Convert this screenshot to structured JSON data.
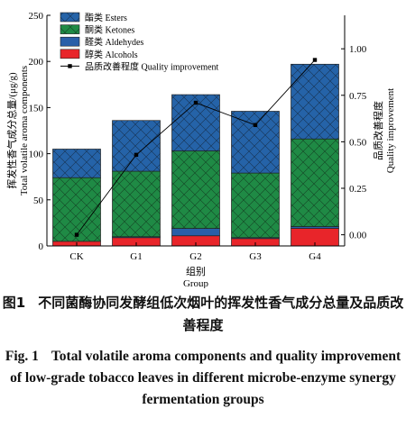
{
  "chart_data": {
    "type": "bar",
    "stacked": true,
    "categories": [
      "CK",
      "G1",
      "G2",
      "G3",
      "G4"
    ],
    "series": [
      {
        "name": "醇类  Alcohols",
        "color": "#e8252a",
        "values": [
          5,
          9,
          11,
          8,
          19
        ]
      },
      {
        "name": "醛类  Aldehydes",
        "color": "#2a5fa8",
        "values": [
          0,
          1,
          8,
          1,
          2
        ]
      },
      {
        "name": "酮类  Ketones",
        "color": "#1f8a45",
        "values": [
          69,
          71,
          84,
          70,
          95
        ]
      },
      {
        "name": "酯类  Esters",
        "color": "#2563a8",
        "values": [
          31,
          55,
          61,
          67,
          81
        ]
      }
    ],
    "line_series": {
      "name": "品质改善程度  Quality improvement",
      "color": "#000000",
      "values": [
        0.0,
        0.43,
        0.71,
        0.59,
        0.94
      ]
    },
    "xlabel_cn": "组别",
    "xlabel_en": "Group",
    "ylabel_cn": "挥发性香气成分总量/(μg/g)",
    "ylabel_en": "Total volatile aroma components",
    "y2label_cn": "品质改善程度",
    "y2label_en": "Quality improvement",
    "ylim": [
      0,
      250
    ],
    "yticks": [
      "0",
      "50",
      "100",
      "150",
      "200",
      "250"
    ],
    "y2lim": [
      -0.06,
      1.18
    ],
    "y2ticks": [
      "0.00",
      "0.25",
      "0.50",
      "0.75",
      "1.00"
    ],
    "legend_position": "top-left"
  },
  "caption": {
    "cn_number": "图1",
    "cn_title": "不同菌酶协同发酵组低次烟叶的挥发性香气成分总量及品质改善程度",
    "en_number": "Fig. 1",
    "en_title": "Total volatile aroma components and quality improvement of low-grade tobacco leaves in different microbe-enzyme synergy fermentation groups"
  }
}
